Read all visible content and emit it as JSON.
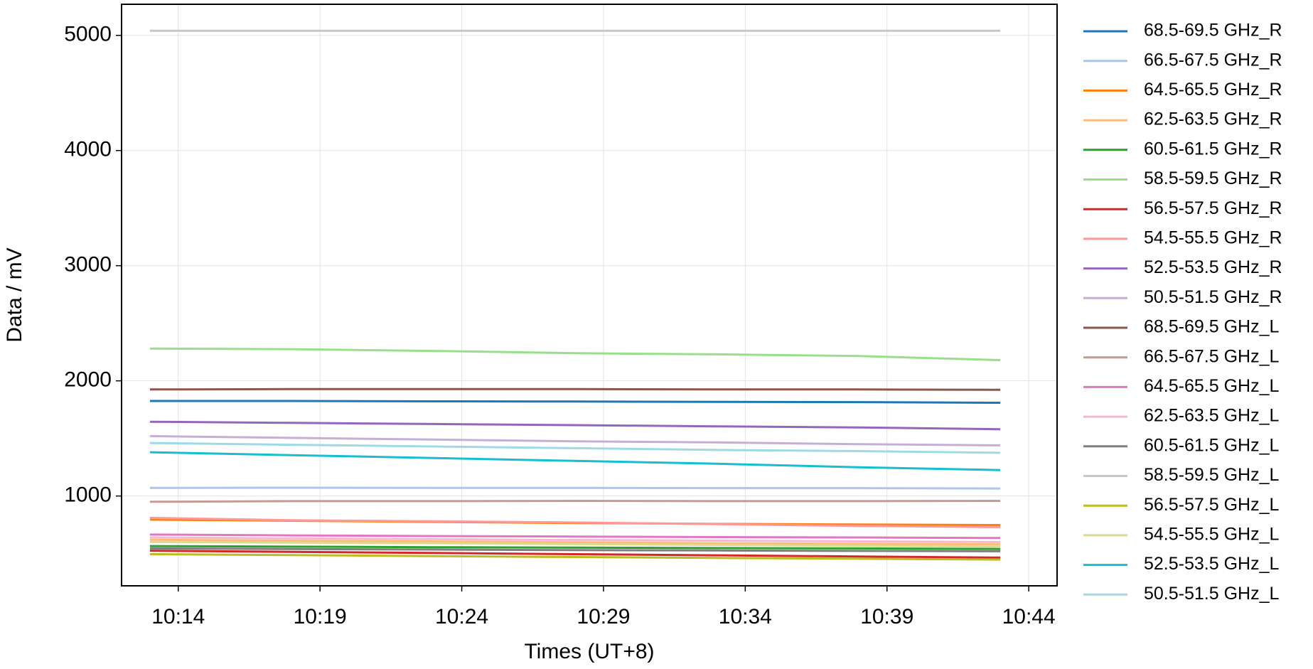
{
  "chart_data": {
    "type": "line",
    "xlabel": "Times (UT+8)",
    "ylabel": "Data / mV",
    "x": [
      "10:13",
      "10:18",
      "10:23",
      "10:28",
      "10:33",
      "10:38",
      "10:43"
    ],
    "xlim": [
      "10:12",
      "10:45"
    ],
    "xticks": [
      "10:14",
      "10:19",
      "10:24",
      "10:29",
      "10:34",
      "10:39",
      "10:44"
    ],
    "ylim": [
      220,
      5270
    ],
    "yticks": [
      1000,
      2000,
      3000,
      4000,
      5000
    ],
    "grid": true,
    "legend": "outside-right",
    "series": [
      {
        "name": "68.5-69.5 GHz_R",
        "color": "#1f77b4",
        "values": [
          1825,
          1825,
          1822,
          1820,
          1818,
          1815,
          1810
        ]
      },
      {
        "name": "66.5-67.5 GHz_R",
        "color": "#aec7e8",
        "values": [
          1070,
          1072,
          1070,
          1070,
          1068,
          1068,
          1065
        ]
      },
      {
        "name": "64.5-65.5 GHz_R",
        "color": "#ff7f0e",
        "values": [
          795,
          785,
          775,
          765,
          758,
          752,
          748
        ]
      },
      {
        "name": "62.5-63.5 GHz_R",
        "color": "#ffbb78",
        "values": [
          620,
          612,
          605,
          598,
          590,
          585,
          580
        ]
      },
      {
        "name": "60.5-61.5 GHz_R",
        "color": "#2ca02c",
        "values": [
          565,
          560,
          555,
          552,
          548,
          545,
          540
        ]
      },
      {
        "name": "58.5-59.5 GHz_R",
        "color": "#98df8a",
        "values": [
          2280,
          2275,
          2260,
          2240,
          2230,
          2215,
          2180
        ]
      },
      {
        "name": "56.5-57.5 GHz_R",
        "color": "#d62728",
        "values": [
          525,
          515,
          505,
          495,
          485,
          475,
          465
        ]
      },
      {
        "name": "54.5-55.5 GHz_R",
        "color": "#ff9896",
        "values": [
          810,
          790,
          780,
          770,
          755,
          740,
          730
        ]
      },
      {
        "name": "52.5-53.5 GHz_R",
        "color": "#9467bd",
        "values": [
          1645,
          1635,
          1625,
          1615,
          1605,
          1595,
          1580
        ]
      },
      {
        "name": "50.5-51.5 GHz_R",
        "color": "#c5b0d5",
        "values": [
          1520,
          1505,
          1490,
          1475,
          1465,
          1450,
          1440
        ]
      },
      {
        "name": "68.5-69.5 GHz_L",
        "color": "#8c564b",
        "values": [
          1925,
          1928,
          1928,
          1928,
          1925,
          1925,
          1922
        ]
      },
      {
        "name": "66.5-67.5 GHz_L",
        "color": "#c49c94",
        "values": [
          950,
          955,
          955,
          958,
          955,
          955,
          958
        ]
      },
      {
        "name": "64.5-65.5 GHz_L",
        "color": "#e377c2",
        "values": [
          665,
          658,
          652,
          648,
          643,
          640,
          635
        ]
      },
      {
        "name": "62.5-63.5 GHz_L",
        "color": "#f7b6d2",
        "values": [
          640,
          632,
          625,
          618,
          612,
          606,
          600
        ]
      },
      {
        "name": "60.5-61.5 GHz_L",
        "color": "#7f7f7f",
        "values": [
          545,
          540,
          535,
          530,
          527,
          523,
          520
        ]
      },
      {
        "name": "58.5-59.5 GHz_L",
        "color": "#c7c7c7",
        "values": [
          5040,
          5040,
          5040,
          5040,
          5040,
          5040,
          5040
        ]
      },
      {
        "name": "56.5-57.5 GHz_L",
        "color": "#bcbd22",
        "values": [
          495,
          487,
          478,
          470,
          462,
          455,
          448
        ]
      },
      {
        "name": "54.5-55.5 GHz_L",
        "color": "#dbdb8d",
        "values": [
          600,
          595,
          590,
          582,
          575,
          568,
          560
        ]
      },
      {
        "name": "52.5-53.5 GHz_L",
        "color": "#17becf",
        "values": [
          1380,
          1355,
          1330,
          1305,
          1280,
          1250,
          1225
        ]
      },
      {
        "name": "50.5-51.5 GHz_L",
        "color": "#9edae5",
        "values": [
          1460,
          1445,
          1430,
          1415,
          1400,
          1390,
          1375
        ]
      }
    ]
  }
}
